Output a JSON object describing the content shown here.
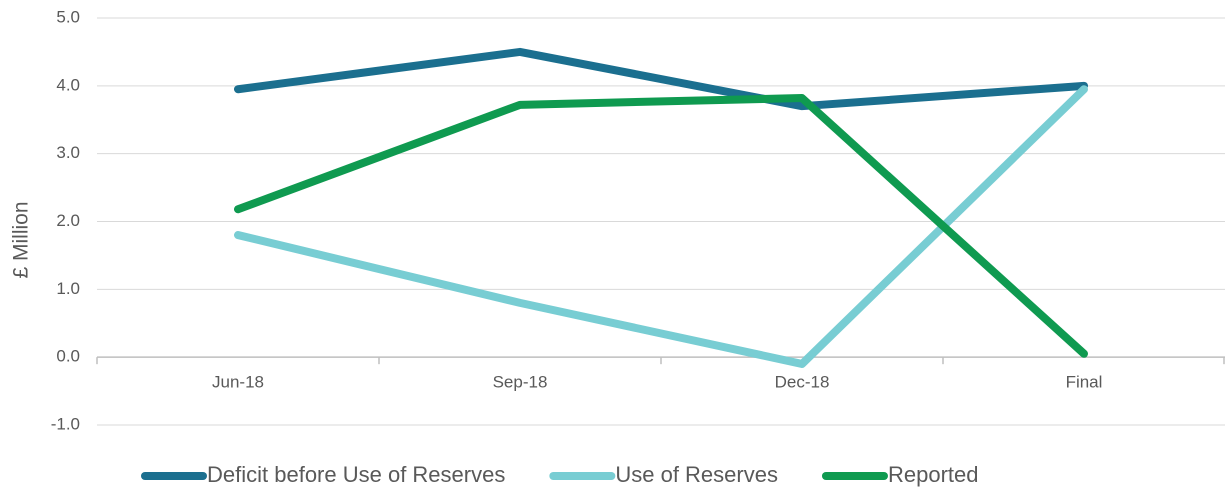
{
  "chart_data": {
    "type": "line",
    "y_label": "£ Million",
    "categories": [
      "Jun-18",
      "Sep-18",
      "Dec-18",
      "Final"
    ],
    "series": [
      {
        "name": "Deficit before Use of Reserves",
        "color": "#1b6f8f",
        "values": [
          3.95,
          4.5,
          3.7,
          4.0
        ]
      },
      {
        "name": "Use of Reserves",
        "color": "#78cdd3",
        "values": [
          1.8,
          0.8,
          -0.1,
          3.95
        ]
      },
      {
        "name": "Reported",
        "color": "#0f9a50",
        "values": [
          2.18,
          3.72,
          3.82,
          0.05
        ]
      }
    ],
    "ylim": [
      -1,
      5
    ],
    "yticks": [
      {
        "value": -1,
        "label": "-1.0"
      },
      {
        "value": 0,
        "label": "0.0"
      },
      {
        "value": 1,
        "label": "1.0"
      },
      {
        "value": 2,
        "label": "2.0"
      },
      {
        "value": 3,
        "label": "3.0"
      },
      {
        "value": 4,
        "label": "4.0"
      },
      {
        "value": 5,
        "label": "5.0"
      }
    ],
    "grid": true,
    "legend": "bottom"
  }
}
